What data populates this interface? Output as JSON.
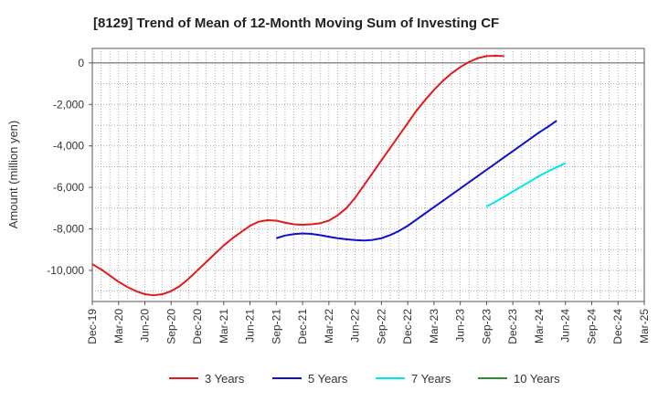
{
  "chart_data": {
    "type": "line",
    "title": "[8129]  Trend of Mean of 12-Month Moving Sum of Investing CF",
    "xlabel": "",
    "ylabel": "Amount (million yen)",
    "ylim": [
      -11500,
      700
    ],
    "yticks": [
      0,
      -2000,
      -4000,
      -6000,
      -8000,
      -10000
    ],
    "ytick_labels": [
      "0",
      "-2,000",
      "-4,000",
      "-6,000",
      "-8,000",
      "-10,000"
    ],
    "x_tick_labels": [
      "Dec-19",
      "Mar-20",
      "Jun-20",
      "Sep-20",
      "Dec-20",
      "Mar-21",
      "Jun-21",
      "Sep-21",
      "Dec-21",
      "Mar-22",
      "Jun-22",
      "Sep-22",
      "Dec-22",
      "Mar-23",
      "Jun-23",
      "Sep-23",
      "Dec-23",
      "Mar-24",
      "Jun-24",
      "Sep-24",
      "Dec-24",
      "Mar-25"
    ],
    "grid": true,
    "legend_position": "bottom",
    "series": [
      {
        "name": "3 Years",
        "color": "#e31a1c",
        "start_index": 0,
        "values": [
          -9700,
          -9950,
          -10250,
          -10550,
          -10800,
          -11000,
          -11150,
          -11200,
          -11150,
          -11000,
          -10750,
          -10400,
          -10000,
          -9600,
          -9200,
          -8800,
          -8450,
          -8150,
          -7850,
          -7650,
          -7580,
          -7600,
          -7700,
          -7780,
          -7800,
          -7780,
          -7730,
          -7600,
          -7350,
          -7000,
          -6500,
          -5900,
          -5300,
          -4700,
          -4100,
          -3500,
          -2900,
          -2300,
          -1780,
          -1300,
          -870,
          -500,
          -200,
          50,
          230,
          330,
          350,
          330
        ]
      },
      {
        "name": "5 Years",
        "color": "#1010cc",
        "start_index": 21,
        "values": [
          -8450,
          -8320,
          -8250,
          -8220,
          -8240,
          -8300,
          -8380,
          -8450,
          -8500,
          -8540,
          -8560,
          -8530,
          -8450,
          -8300,
          -8100,
          -7850,
          -7550,
          -7250,
          -6950,
          -6650,
          -6350,
          -6050,
          -5750,
          -5450,
          -5150,
          -4850,
          -4550,
          -4250,
          -3950,
          -3650,
          -3350,
          -3080,
          -2780
        ]
      },
      {
        "name": "7 Years",
        "color": "#00e5ee",
        "start_index": 45,
        "values": [
          -6920,
          -6700,
          -6450,
          -6200,
          -5950,
          -5700,
          -5450,
          -5230,
          -5030,
          -4830
        ]
      },
      {
        "name": "10 Years",
        "color": "#2e8b2e",
        "start_index": 0,
        "values": []
      }
    ]
  }
}
